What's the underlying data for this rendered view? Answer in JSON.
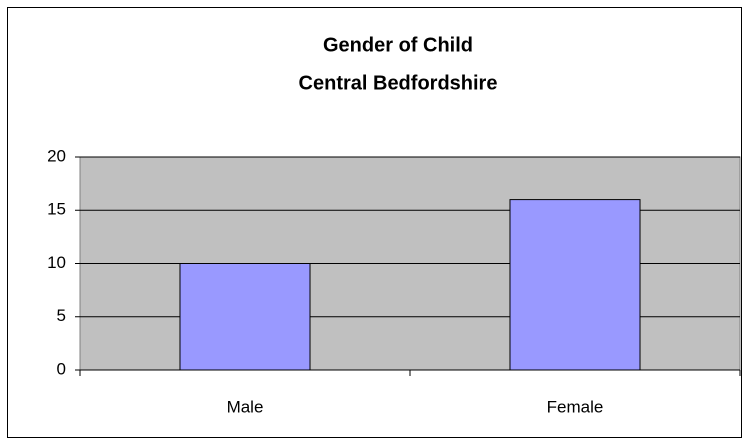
{
  "chart_data": {
    "type": "bar",
    "title": "Gender of Child",
    "subtitle": "Central Bedfordshire",
    "categories": [
      "Male",
      "Female"
    ],
    "values": [
      10,
      16
    ],
    "color": "#9999ff",
    "ylim": [
      0,
      20
    ],
    "yticks": [
      0,
      5,
      10,
      15,
      20
    ],
    "grid": true
  }
}
